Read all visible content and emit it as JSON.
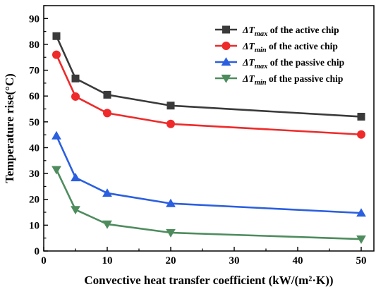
{
  "chart_data": {
    "type": "line",
    "xlabel": "Convective heat transfer coefficient (kW/(m²·K))",
    "ylabel": "Temperature rise(°C)",
    "xlim": [
      0,
      52
    ],
    "ylim": [
      0,
      95
    ],
    "xticks": [
      "0",
      "10",
      "20",
      "30",
      "40",
      "50"
    ],
    "yticks": [
      "0",
      "10",
      "20",
      "30",
      "40",
      "50",
      "60",
      "70",
      "80",
      "90"
    ],
    "x": [
      2,
      5,
      10,
      20,
      50
    ],
    "legend_position": "top-right",
    "grid": false,
    "series": [
      {
        "name": "ΔTmax of the active chip",
        "legend_symbol": "ΔT",
        "legend_sub": "max",
        "legend_rest": " of the active chip",
        "marker": "square",
        "color": "#3a3a3a",
        "values": [
          83.2,
          66.8,
          60.5,
          56.3,
          52.0
        ]
      },
      {
        "name": "ΔTmin of the active chip",
        "legend_symbol": "ΔT",
        "legend_sub": "min",
        "legend_rest": " of the active chip",
        "marker": "circle",
        "color": "#ee2a2a",
        "values": [
          76.0,
          59.8,
          53.4,
          49.2,
          45.1
        ]
      },
      {
        "name": "ΔTmax of the passive chip",
        "legend_symbol": "ΔT",
        "legend_sub": "max",
        "legend_rest": " of the passive chip",
        "marker": "triangle-up",
        "color": "#2b5fe0",
        "values": [
          44.6,
          28.4,
          22.4,
          18.4,
          14.7
        ]
      },
      {
        "name": "ΔTmin of the passive chip",
        "legend_symbol": "ΔT",
        "legend_sub": "min",
        "legend_rest": " of the passive chip",
        "marker": "triangle-down",
        "color": "#4e8c5e",
        "values": [
          31.5,
          16.0,
          10.4,
          7.1,
          4.6
        ]
      }
    ]
  }
}
